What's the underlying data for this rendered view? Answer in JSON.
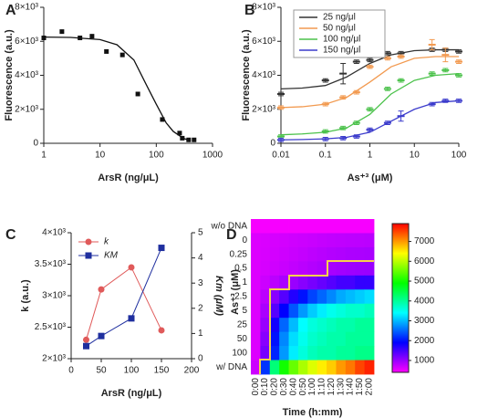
{
  "chart_data": [
    {
      "type": "scatter",
      "panel": "A",
      "x_label": "ArsR (ng/μL)",
      "y_label": "Fluorescence (a.u.)",
      "x_scale": "log",
      "xlim": [
        1,
        1000
      ],
      "xticks": [
        1,
        10,
        100,
        1000
      ],
      "ylim": [
        0,
        8000
      ],
      "yticks": [
        0,
        {
          "value": 2000,
          "label": "2×10³"
        },
        {
          "value": 4000,
          "label": "4×10³"
        },
        {
          "value": 6000,
          "label": "6×10³"
        },
        {
          "value": 8000,
          "label": "8×10³"
        }
      ],
      "color": "#111111",
      "marker": "square",
      "x": [
        1,
        2.1,
        4.4,
        7.2,
        13,
        25,
        47,
        128,
        260,
        290,
        376,
        470
      ],
      "values": [
        6200,
        6570,
        6200,
        6300,
        5400,
        5200,
        2900,
        1400,
        600,
        300,
        200,
        200
      ],
      "fit": {
        "x": [
          1,
          3,
          10,
          20,
          40,
          70,
          100,
          150,
          200,
          300,
          400
        ],
        "values": [
          6250,
          6230,
          6100,
          5800,
          4900,
          3300,
          2300,
          1200,
          700,
          300,
          150
        ]
      }
    },
    {
      "type": "scatter",
      "panel": "B",
      "x_label": "As⁺³ (μM)",
      "y_label": "Fluorescence (a.u.)",
      "x_scale": "log",
      "xlim": [
        0.01,
        100
      ],
      "xticks": [
        0.01,
        0.1,
        1,
        10,
        100
      ],
      "ylim": [
        0,
        8000
      ],
      "yticks": [
        0,
        {
          "value": 2000,
          "label": "2×10³"
        },
        {
          "value": 4000,
          "label": "4×10³"
        },
        {
          "value": 6000,
          "label": "6×10³"
        },
        {
          "value": 8000,
          "label": "8×10³"
        }
      ],
      "marker": "dash",
      "legend": "upper left",
      "x": [
        0.01,
        0.1,
        0.25,
        0.5,
        1,
        2.5,
        5,
        25,
        50,
        100
      ],
      "fit_x": [
        0.01,
        0.03,
        0.1,
        0.3,
        1,
        3,
        10,
        30,
        100
      ],
      "series": [
        {
          "name": "25 ng/μl",
          "color": "#333333",
          "values": [
            2900,
            3700,
            4100,
            4800,
            4900,
            5300,
            5300,
            5500,
            5500,
            5400
          ],
          "errors": [
            100,
            100,
            600,
            100,
            100,
            100,
            100,
            100,
            100,
            100
          ],
          "fit": [
            3200,
            3250,
            3400,
            3900,
            4700,
            5200,
            5450,
            5500,
            5500
          ]
        },
        {
          "name": "50 ng/μl",
          "color": "#f29a50",
          "values": [
            2100,
            2300,
            2700,
            3000,
            4500,
            5000,
            5100,
            5800,
            5200,
            4800
          ],
          "errors": [
            100,
            100,
            100,
            100,
            100,
            100,
            100,
            300,
            400,
            100
          ],
          "fit": [
            2100,
            2150,
            2300,
            2700,
            3600,
            4500,
            5000,
            5100,
            5100
          ]
        },
        {
          "name": "100 ng/μl",
          "color": "#4cc24c",
          "values": [
            400,
            700,
            900,
            1200,
            2000,
            3200,
            3700,
            4100,
            4300,
            4000
          ],
          "errors": [
            100,
            100,
            100,
            100,
            100,
            100,
            100,
            100,
            100,
            100
          ],
          "fit": [
            500,
            550,
            650,
            900,
            1700,
            2900,
            3700,
            4000,
            4100
          ]
        },
        {
          "name": "150 ng/μl",
          "color": "#3c3ccc",
          "values": [
            200,
            250,
            300,
            400,
            800,
            1200,
            1600,
            2300,
            2500,
            2500
          ],
          "errors": [
            100,
            100,
            100,
            100,
            100,
            100,
            300,
            100,
            100,
            100
          ],
          "fit": [
            200,
            220,
            260,
            350,
            650,
            1300,
            2000,
            2400,
            2500
          ]
        }
      ]
    },
    {
      "type": "line",
      "panel": "C",
      "x_label": "ArsR (ng/μL)",
      "y_label": "k (a.u.)",
      "y2_label": "Km (μM)",
      "xlim": [
        0,
        200
      ],
      "xticks": [
        0,
        50,
        100,
        150,
        200
      ],
      "ylim": [
        2000,
        4000
      ],
      "yticks": [
        {
          "value": 2000,
          "label": "2×10³"
        },
        {
          "value": 2500,
          "label": "2.5×10³"
        },
        {
          "value": 3000,
          "label": "3×10³"
        },
        {
          "value": 3500,
          "label": "3.5×10³"
        },
        {
          "value": 4000,
          "label": "4×10³"
        }
      ],
      "y2lim": [
        0,
        5
      ],
      "y2ticks": [
        0,
        1,
        2,
        3,
        4,
        5
      ],
      "legend": "upper left",
      "x": [
        25,
        50,
        100,
        150
      ],
      "series": [
        {
          "name": "k",
          "color": "#e05a5a",
          "marker": "circle",
          "values": [
            2300,
            3100,
            3450,
            2450
          ]
        },
        {
          "name": "KM",
          "color": "#1f2f9f",
          "marker": "square",
          "axis": "y2",
          "values": [
            0.5,
            0.9,
            1.6,
            4.4
          ]
        }
      ]
    },
    {
      "type": "heatmap",
      "panel": "D",
      "x_label": "Time (h:mm)",
      "y_label": "As⁺³ (μM)",
      "rows": [
        "w/o DNA",
        "0",
        "0.25",
        "0.5",
        "1",
        "2.5",
        "5",
        "25",
        "50",
        "100",
        "w/ DNA"
      ],
      "columns": [
        "0:00",
        "0:10",
        "0:20",
        "0:30",
        "0:40",
        "0:50",
        "1:00",
        "1:10",
        "1:20",
        "1:30",
        "1:40",
        "1:50",
        "2:00"
      ],
      "values": [
        [
          450,
          450,
          450,
          450,
          450,
          450,
          450,
          450,
          450,
          450,
          450,
          450,
          450
        ],
        [
          600,
          620,
          640,
          660,
          680,
          700,
          720,
          740,
          760,
          770,
          780,
          790,
          800
        ],
        [
          600,
          630,
          660,
          690,
          720,
          750,
          780,
          810,
          840,
          860,
          880,
          890,
          900
        ],
        [
          600,
          640,
          680,
          720,
          760,
          800,
          840,
          880,
          920,
          950,
          970,
          990,
          1000
        ],
        [
          600,
          700,
          800,
          900,
          1000,
          1100,
          1200,
          1300,
          1400,
          1500,
          1500,
          1600,
          1600
        ],
        [
          600,
          800,
          1100,
          1400,
          1700,
          2000,
          2300,
          2500,
          2700,
          2900,
          3000,
          3100,
          3200
        ],
        [
          600,
          900,
          1400,
          1900,
          2400,
          2800,
          3100,
          3300,
          3500,
          3600,
          3700,
          3700,
          3800
        ],
        [
          600,
          1000,
          1800,
          2500,
          3000,
          3400,
          3600,
          3700,
          3800,
          3900,
          3900,
          4000,
          4000
        ],
        [
          600,
          1100,
          2000,
          2700,
          3200,
          3500,
          3700,
          3800,
          3900,
          3900,
          4000,
          4000,
          4000
        ],
        [
          600,
          1200,
          2100,
          2800,
          3300,
          3600,
          3800,
          3900,
          3900,
          4000,
          4000,
          4100,
          4100
        ],
        [
          700,
          2200,
          4200,
          5000,
          5500,
          5900,
          6200,
          6500,
          6700,
          7000,
          7200,
          7500,
          7700
        ]
      ],
      "colorbar": {
        "lim": [
          400,
          7900
        ],
        "ticks": [
          1000,
          2000,
          3000,
          4000,
          5000,
          6000,
          7000
        ],
        "colors": [
          "#ff00ff",
          "#0000ff",
          "#00ffff",
          "#00ff00",
          "#ffff00",
          "#ff0000"
        ]
      }
    }
  ]
}
